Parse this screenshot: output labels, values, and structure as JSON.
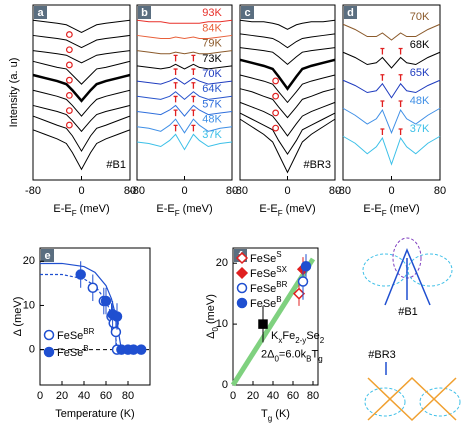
{
  "chart_data": [
    {
      "type": "line",
      "label": "a",
      "annotation": "#B1",
      "ylabel": [
        "Intensity (a. u)"
      ],
      "xlabel": [
        "E-E",
        "F",
        " (meV)"
      ],
      "xlim": [
        -80,
        80
      ],
      "xticks": [
        -80,
        0,
        80
      ],
      "ylim": [
        -1.5,
        10
      ],
      "peak_marker": "circle",
      "x": [
        -80,
        -60,
        -40,
        -25,
        -15,
        0,
        15,
        25,
        40,
        60,
        80
      ],
      "series": [
        {
          "color": "#000000",
          "values": [
            1.8,
            1.5,
            1.2,
            0.9,
            0.3,
            -0.8,
            0.3,
            0.9,
            1.2,
            1.5,
            1.8
          ]
        },
        {
          "color": "#000000",
          "values": [
            2.7,
            2.4,
            2.1,
            1.9,
            1.4,
            0.4,
            1.4,
            1.9,
            2.1,
            2.4,
            2.7
          ],
          "peaks": [
            -20
          ]
        },
        {
          "color": "#000000",
          "values": [
            3.4,
            3.2,
            3.0,
            2.8,
            2.4,
            1.7,
            2.4,
            2.8,
            3.0,
            3.2,
            3.4
          ],
          "peaks": [
            -20
          ]
        },
        {
          "color": "#000000",
          "values": [
            4.4,
            4.2,
            4.0,
            3.8,
            3.4,
            2.7,
            3.4,
            3.8,
            4.0,
            4.2,
            4.4
          ],
          "peaks": [
            -20
          ]
        },
        {
          "color": "#000000",
          "values": [
            5.4,
            5.2,
            5.0,
            4.8,
            4.4,
            3.7,
            4.4,
            4.8,
            5.0,
            5.2,
            5.4
          ],
          "peaks": [
            -20
          ],
          "line_width": 2.5
        },
        {
          "color": "#000000",
          "values": [
            6.3,
            6.1,
            5.9,
            5.8,
            5.4,
            4.8,
            5.4,
            5.8,
            5.9,
            6.1,
            6.3
          ],
          "peaks": [
            -20
          ]
        },
        {
          "color": "#000000",
          "values": [
            7.0,
            6.9,
            6.8,
            6.7,
            6.5,
            6.2,
            6.5,
            6.7,
            6.8,
            6.9,
            7.0
          ],
          "peaks": [
            -20
          ]
        },
        {
          "color": "#000000",
          "values": [
            8.0,
            7.9,
            7.8,
            7.7,
            7.5,
            7.2,
            7.5,
            7.7,
            7.8,
            7.9,
            8.0
          ],
          "peaks": [
            -20
          ]
        },
        {
          "color": "#000000",
          "values": [
            9.0,
            8.9,
            8.8,
            8.7,
            8.5,
            8.2,
            8.5,
            8.7,
            8.8,
            8.9,
            9.0
          ]
        }
      ]
    },
    {
      "type": "line",
      "label": "b",
      "xlabel": [
        "E-E",
        "F",
        " (meV)"
      ],
      "xlim": [
        -80,
        80
      ],
      "xticks": [
        -80,
        0,
        80
      ],
      "ylim": [
        -1.5,
        10
      ],
      "peak_marker": "tick",
      "x": [
        -80,
        -60,
        -40,
        -25,
        -15,
        0,
        15,
        25,
        40,
        60,
        80
      ],
      "series": [
        {
          "name": "37K",
          "color": "#3cc0e8",
          "values": [
            1.0,
            0.9,
            0.7,
            1.1,
            1.5,
            0.5,
            1.5,
            1.1,
            0.7,
            0.9,
            1.0
          ],
          "peaks": [
            -15,
            15
          ]
        },
        {
          "name": "48K",
          "color": "#3f8fe6",
          "values": [
            2.0,
            1.9,
            1.7,
            2.1,
            2.5,
            1.6,
            2.5,
            2.1,
            1.7,
            1.9,
            2.0
          ],
          "peaks": [
            -15,
            15
          ]
        },
        {
          "name": "57K",
          "color": "#2f6fdc",
          "values": [
            3.0,
            2.9,
            2.8,
            3.1,
            3.4,
            2.7,
            3.4,
            3.1,
            2.8,
            2.9,
            3.0
          ],
          "peaks": [
            -15,
            15
          ]
        },
        {
          "name": "64K",
          "color": "#2854cc",
          "values": [
            4.0,
            3.9,
            3.8,
            4.0,
            4.3,
            3.8,
            4.3,
            4.0,
            3.8,
            3.9,
            4.0
          ],
          "peaks": [
            -15,
            15
          ]
        },
        {
          "name": "70K",
          "color": "#1f3cbf",
          "values": [
            5.0,
            4.9,
            4.8,
            5.0,
            5.2,
            4.8,
            5.2,
            5.0,
            4.8,
            4.9,
            5.0
          ],
          "peaks": [
            -15,
            15
          ]
        },
        {
          "name": "73K",
          "color": "#000000",
          "values": [
            6.0,
            5.9,
            5.8,
            5.9,
            6.1,
            5.8,
            6.1,
            5.9,
            5.8,
            5.9,
            6.0
          ],
          "peaks": [
            -15,
            15
          ]
        },
        {
          "name": "79K",
          "color": "#8b5a2b",
          "values": [
            7.0,
            6.9,
            6.8,
            6.8,
            6.9,
            6.8,
            6.9,
            6.8,
            6.8,
            6.9,
            7.0
          ]
        },
        {
          "name": "84K",
          "color": "#e8603a",
          "values": [
            8.0,
            7.9,
            7.8,
            7.8,
            7.9,
            7.8,
            7.9,
            7.8,
            7.8,
            7.9,
            8.0
          ]
        },
        {
          "name": "93K",
          "color": "#e8302a",
          "values": [
            9.0,
            8.9,
            8.9,
            8.8,
            8.8,
            8.8,
            8.8,
            8.8,
            8.9,
            8.9,
            9.0
          ]
        }
      ]
    },
    {
      "type": "line",
      "label": "c",
      "annotation": "#BR3",
      "xlabel": [
        "E-E",
        "F",
        " (meV)"
      ],
      "xlim": [
        -80,
        80
      ],
      "xticks": [
        -80,
        0,
        80
      ],
      "ylim": [
        -1.5,
        10
      ],
      "peak_marker": "circle",
      "x": [
        -80,
        -60,
        -40,
        -25,
        -15,
        0,
        15,
        25,
        40,
        60,
        80
      ],
      "series": [
        {
          "color": "#000000",
          "values": [
            2.5,
            2.0,
            1.5,
            1.0,
            0.2,
            -1.0,
            0.2,
            1.0,
            1.5,
            2.0,
            2.5
          ]
        },
        {
          "color": "#000000",
          "values": [
            2.9,
            2.5,
            2.1,
            1.8,
            1.1,
            0.2,
            1.1,
            1.8,
            2.1,
            2.5,
            2.9
          ],
          "peaks": [
            -20
          ]
        },
        {
          "color": "#000000",
          "values": [
            3.6,
            3.3,
            3.0,
            2.7,
            2.2,
            1.4,
            2.2,
            2.7,
            3.0,
            3.3,
            3.6
          ],
          "peaks": [
            -20
          ]
        },
        {
          "color": "#000000",
          "values": [
            4.5,
            4.3,
            4.0,
            3.8,
            3.3,
            2.6,
            3.3,
            3.8,
            4.0,
            4.3,
            4.5
          ],
          "peaks": [
            -20
          ]
        },
        {
          "color": "#000000",
          "values": [
            5.4,
            5.2,
            5.0,
            4.8,
            4.3,
            3.6,
            4.3,
            4.8,
            5.0,
            5.2,
            5.4
          ],
          "peaks": [
            -20
          ]
        },
        {
          "color": "#000000",
          "values": [
            6.4,
            6.2,
            6.0,
            5.8,
            5.3,
            4.5,
            5.3,
            5.8,
            6.0,
            6.2,
            6.4
          ],
          "line_width": 2.5
        },
        {
          "color": "#000000",
          "values": [
            7.2,
            7.1,
            7.0,
            6.9,
            6.6,
            6.1,
            6.6,
            6.9,
            7.0,
            7.1,
            7.2
          ]
        },
        {
          "color": "#000000",
          "values": [
            8.1,
            8.0,
            7.9,
            7.8,
            7.6,
            7.2,
            7.6,
            7.8,
            7.9,
            8.0,
            8.1
          ]
        },
        {
          "color": "#000000",
          "values": [
            9.0,
            8.9,
            8.9,
            8.8,
            8.7,
            8.4,
            8.7,
            8.8,
            8.9,
            8.9,
            9.0
          ]
        }
      ]
    },
    {
      "type": "line",
      "label": "d",
      "xlabel": [
        "E-E",
        "F",
        " (meV)"
      ],
      "xlim": [
        -80,
        80
      ],
      "xticks": [
        -80,
        0,
        80
      ],
      "ylim": [
        -0.5,
        9.5
      ],
      "peak_marker": "tick",
      "x": [
        -80,
        -60,
        -40,
        -25,
        -15,
        0,
        15,
        25,
        40,
        60,
        80
      ],
      "series": [
        {
          "name": "37K",
          "color": "#3cc0e8",
          "values": [
            2.0,
            1.6,
            1.0,
            1.4,
            1.9,
            0.4,
            1.9,
            1.4,
            1.0,
            1.6,
            2.0
          ],
          "peaks": [
            -15,
            15
          ]
        },
        {
          "name": "48K",
          "color": "#3f8fe6",
          "values": [
            3.6,
            3.2,
            2.7,
            3.0,
            3.5,
            2.2,
            3.5,
            3.0,
            2.7,
            3.2,
            3.6
          ],
          "peaks": [
            -15,
            15
          ]
        },
        {
          "name": "65K",
          "color": "#1f3cbf",
          "values": [
            5.2,
            4.9,
            4.5,
            4.6,
            5.0,
            4.2,
            5.0,
            4.6,
            4.5,
            4.9,
            5.2
          ],
          "peaks": [
            -15,
            15
          ]
        },
        {
          "name": "68K",
          "color": "#000000",
          "values": [
            6.8,
            6.5,
            6.1,
            6.2,
            6.5,
            5.9,
            6.5,
            6.2,
            6.1,
            6.5,
            6.8
          ],
          "peaks": [
            -15,
            15
          ]
        },
        {
          "name": "70K",
          "color": "#8b5a2b",
          "values": [
            8.4,
            8.1,
            7.7,
            7.7,
            7.9,
            7.5,
            7.9,
            7.7,
            7.7,
            8.1,
            8.4
          ]
        }
      ]
    },
    {
      "type": "scatter",
      "label": "e",
      "xlabel": [
        "Temperature (K)"
      ],
      "ylabel": [
        "Δ (meV)"
      ],
      "xlim": [
        0,
        100
      ],
      "xticks": [
        0,
        20,
        40,
        60,
        80
      ],
      "ylim": [
        -8,
        23
      ],
      "yticks": [
        0,
        10,
        20
      ],
      "reference_line": 0,
      "legend": "lower left",
      "series": [
        {
          "name": [
            "FeSe",
            "BR"
          ],
          "color": "#1f4fd0",
          "marker": "open-circle",
          "x": [
            48,
            58,
            65,
            67,
            69,
            70
          ],
          "values": [
            14,
            11,
            7.5,
            6,
            4,
            0
          ],
          "errors": [
            3,
            3,
            3,
            3,
            3,
            0
          ]
        },
        {
          "name": [
            "FeSe",
            "B"
          ],
          "color": "#1f4fd0",
          "marker": "circle",
          "x": [
            37,
            60,
            66,
            70,
            74,
            80,
            85,
            92
          ],
          "values": [
            17,
            11,
            8,
            7.5,
            0,
            0,
            0,
            0
          ],
          "errors": [
            3,
            3,
            3,
            3,
            0,
            0,
            0,
            0
          ]
        }
      ],
      "fits": [
        {
          "style": "solid",
          "color": "#1f4fd0",
          "x": [
            0,
            20,
            40,
            50,
            60,
            65,
            70,
            72,
            74
          ],
          "values": [
            19.5,
            19.5,
            18.8,
            17.5,
            14.5,
            11.5,
            6.5,
            3,
            0
          ]
        },
        {
          "style": "dashed",
          "color": "#1f4fd0",
          "x": [
            0,
            20,
            40,
            50,
            60,
            65,
            68,
            70
          ],
          "values": [
            17,
            17,
            16,
            14.5,
            11,
            8,
            5,
            0
          ]
        }
      ]
    },
    {
      "type": "scatter",
      "label": "f",
      "xlabel": [
        "T",
        "g",
        " (K)"
      ],
      "ylabel": [
        "Δ",
        "0",
        " (meV)"
      ],
      "xlim": [
        0,
        85
      ],
      "xticks": [
        0,
        20,
        40,
        60,
        80
      ],
      "ylim": [
        0,
        22.5
      ],
      "yticks": [
        0,
        10,
        20
      ],
      "legend": "upper left",
      "series": [
        {
          "name": [
            "FeSe",
            "S"
          ],
          "color": "#e02020",
          "marker": "open-diamond",
          "x": [
            66
          ],
          "values": [
            15
          ],
          "errors": [
            2
          ]
        },
        {
          "name": [
            "FeSe",
            "SX"
          ],
          "color": "#e02020",
          "marker": "diamond",
          "x": [
            70
          ],
          "values": [
            19
          ],
          "errors": [
            2
          ]
        },
        {
          "name": [
            "FeSe",
            "BR"
          ],
          "color": "#1f4fd0",
          "marker": "open-circle",
          "x": [
            70
          ],
          "values": [
            17
          ],
          "errors": [
            3
          ]
        },
        {
          "name": [
            "FeSe",
            "B"
          ],
          "color": "#1f4fd0",
          "marker": "circle",
          "x": [
            73
          ],
          "values": [
            19.5
          ],
          "errors": [
            2
          ]
        }
      ],
      "reference_point": {
        "name": [
          "K",
          "x",
          "Fe",
          "2-y",
          "Se",
          "2"
        ],
        "x": 30,
        "value": 10,
        "error": 3,
        "xerror": 3
      },
      "fit": {
        "label": [
          "2Δ",
          "0",
          "=6.0k",
          "B",
          "T",
          "g"
        ],
        "color": "#7fd17f",
        "x": [
          0,
          80
        ],
        "values": [
          0,
          20.7
        ]
      }
    }
  ],
  "schematic_labels": [
    "#B1",
    "#BR3"
  ]
}
